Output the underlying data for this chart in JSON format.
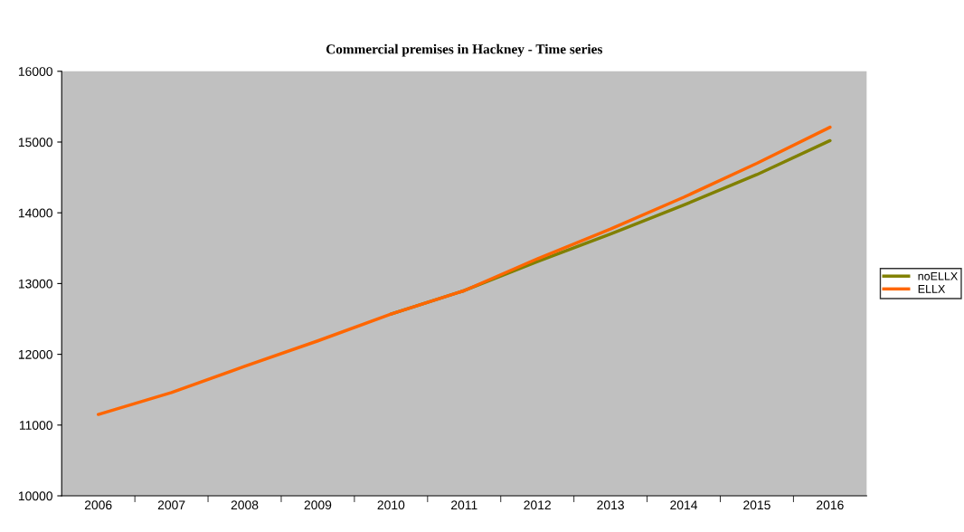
{
  "chart_data": {
    "type": "line",
    "title": "Commercial premises in Hackney - Time series",
    "categories": [
      "2006",
      "2007",
      "2008",
      "2009",
      "2010",
      "2011",
      "2012",
      "2013",
      "2014",
      "2015",
      "2016"
    ],
    "series": [
      {
        "name": "noELLX",
        "color": "#808000",
        "values": [
          null,
          null,
          null,
          null,
          12570,
          12900,
          13310,
          13700,
          14110,
          14540,
          15020
        ]
      },
      {
        "name": "ELLX",
        "color": "#ff6600",
        "values": [
          11150,
          11460,
          11830,
          12190,
          12570,
          12900,
          13350,
          13770,
          14220,
          14700,
          15210
        ]
      }
    ],
    "ylim": [
      10000,
      16000
    ],
    "yticks": [
      10000,
      11000,
      12000,
      13000,
      14000,
      15000,
      16000
    ],
    "grid": false,
    "legend": "right",
    "marker": "none",
    "line_style": "solid"
  }
}
